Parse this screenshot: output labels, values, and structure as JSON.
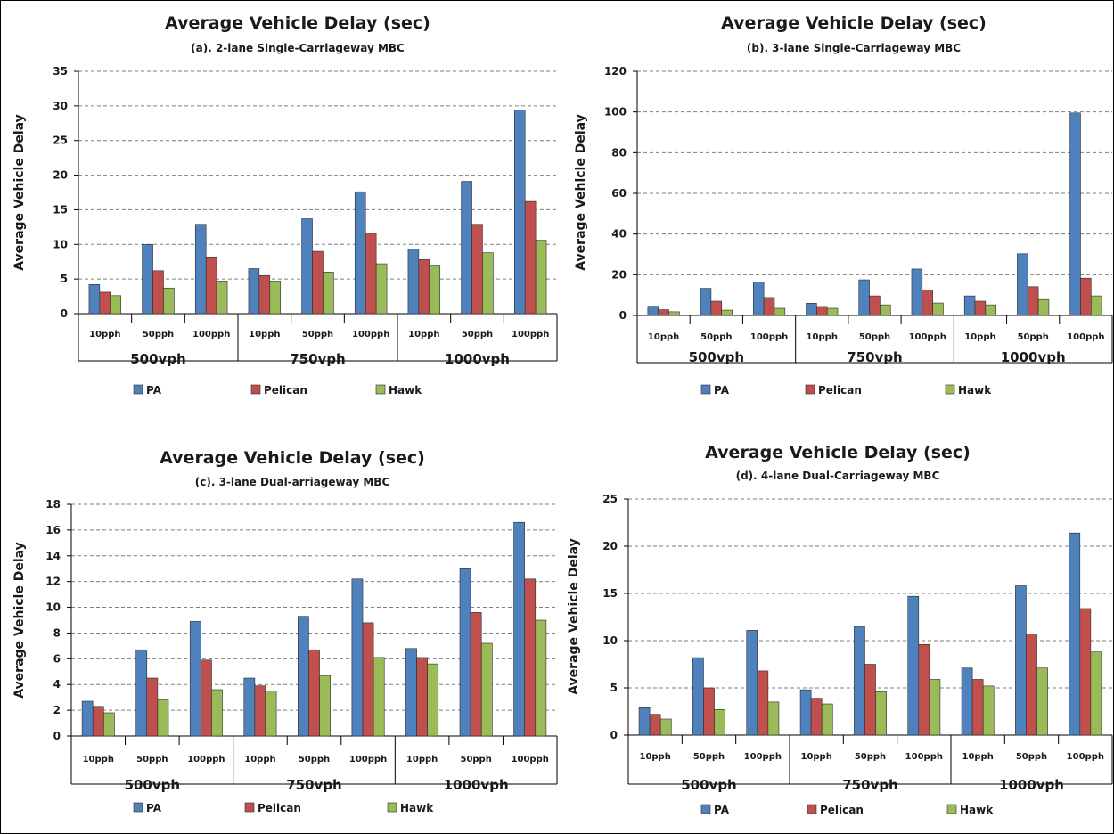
{
  "chart_data": [
    {
      "type": "bar",
      "title": "Average Vehicle Delay (sec)",
      "subtitle": "(a). 2-lane Single-Carriageway MBC",
      "ylabel": "Average Vehicle Delay",
      "ylim": [
        0,
        35
      ],
      "yticks": [
        "0",
        "5",
        "10",
        "15",
        "20",
        "25",
        "30",
        "35"
      ],
      "groups": [
        "500vph",
        "750vph",
        "1000vph"
      ],
      "categories": [
        "10pph",
        "50pph",
        "100pph",
        "10pph",
        "50pph",
        "100pph",
        "10pph",
        "50pph",
        "100pph"
      ],
      "series": [
        {
          "name": "PA",
          "values": [
            4.2,
            10.0,
            12.9,
            6.5,
            13.7,
            17.6,
            9.3,
            19.1,
            29.4
          ]
        },
        {
          "name": "Pelican",
          "values": [
            3.1,
            6.2,
            8.2,
            5.5,
            9.0,
            11.6,
            7.8,
            12.9,
            16.2
          ]
        },
        {
          "name": "Hawk",
          "values": [
            2.6,
            3.7,
            4.7,
            4.7,
            6.0,
            7.2,
            7.0,
            8.8,
            10.6
          ]
        }
      ],
      "grid": "horizontal dashed",
      "legend": "bottom"
    },
    {
      "type": "bar",
      "title": "Average Vehicle Delay (sec)",
      "subtitle": "(b). 3-lane  Single-Carriageway MBC",
      "ylabel": "Average Vehicle Delay",
      "ylim": [
        0,
        120
      ],
      "yticks": [
        "0",
        "20",
        "40",
        "60",
        "80",
        "100",
        "120"
      ],
      "groups": [
        "500vph",
        "750vph",
        "1000vph"
      ],
      "categories": [
        "10pph",
        "50pph",
        "100pph",
        "10pph",
        "50pph",
        "100pph",
        "10pph",
        "50pph",
        "100pph"
      ],
      "series": [
        {
          "name": "PA",
          "values": [
            4.5,
            13.3,
            16.5,
            6.0,
            17.5,
            22.8,
            9.6,
            30.3,
            99.5
          ]
        },
        {
          "name": "Pelican",
          "values": [
            2.8,
            7.0,
            8.8,
            4.4,
            9.6,
            12.4,
            7.0,
            14.1,
            18.3
          ]
        },
        {
          "name": "Hawk",
          "values": [
            1.8,
            2.6,
            3.5,
            3.5,
            5.2,
            6.1,
            5.2,
            7.8,
            9.6
          ]
        }
      ],
      "grid": "horizontal dashed",
      "legend": "bottom"
    },
    {
      "type": "bar",
      "title": "Average Vehicle Delay (sec)",
      "subtitle": "(c). 3-lane Dual-arriageway MBC",
      "ylabel": "Average Vehicle Delay",
      "ylim": [
        0,
        18
      ],
      "yticks": [
        "0",
        "2",
        "4",
        "6",
        "8",
        "10",
        "12",
        "14",
        "16",
        "18"
      ],
      "groups": [
        "500vph",
        "750vph",
        "1000vph"
      ],
      "categories": [
        "10pph",
        "50pph",
        "100pph",
        "10pph",
        "50pph",
        "100pph",
        "10pph",
        "50pph",
        "100pph"
      ],
      "series": [
        {
          "name": "PA",
          "values": [
            2.7,
            6.7,
            8.9,
            4.5,
            9.3,
            12.2,
            6.8,
            13.0,
            16.6
          ]
        },
        {
          "name": "Pelican",
          "values": [
            2.3,
            4.5,
            5.9,
            3.9,
            6.7,
            8.8,
            6.1,
            9.6,
            12.2
          ]
        },
        {
          "name": "Hawk",
          "values": [
            1.8,
            2.8,
            3.6,
            3.5,
            4.7,
            6.1,
            5.6,
            7.2,
            9.0
          ]
        }
      ],
      "grid": "horizontal dashed",
      "legend": "bottom"
    },
    {
      "type": "bar",
      "title": "Average Vehicle Delay (sec)",
      "subtitle": "(d). 4-lane Dual-Carriageway MBC",
      "ylabel": "Average Vehicle Delay",
      "ylim": [
        0,
        25
      ],
      "yticks": [
        "0",
        "5",
        "10",
        "15",
        "20",
        "25"
      ],
      "groups": [
        "500vph",
        "750vph",
        "1000vph"
      ],
      "categories": [
        "10pph",
        "50pph",
        "100pph",
        "10pph",
        "50pph",
        "100pph",
        "10pph",
        "50pph",
        "100pph"
      ],
      "series": [
        {
          "name": "PA",
          "values": [
            2.9,
            8.2,
            11.1,
            4.8,
            11.5,
            14.7,
            7.1,
            15.8,
            21.4
          ]
        },
        {
          "name": "Pelican",
          "values": [
            2.2,
            5.0,
            6.8,
            3.9,
            7.5,
            9.6,
            5.9,
            10.7,
            13.4
          ]
        },
        {
          "name": "Hawk",
          "values": [
            1.7,
            2.7,
            3.5,
            3.3,
            4.6,
            5.9,
            5.2,
            7.1,
            8.8
          ]
        }
      ],
      "grid": "horizontal dashed",
      "legend": "bottom"
    }
  ],
  "colors": {
    "PA": "#4f81bd",
    "Pelican": "#c0504d",
    "Hawk": "#9bbb59"
  }
}
